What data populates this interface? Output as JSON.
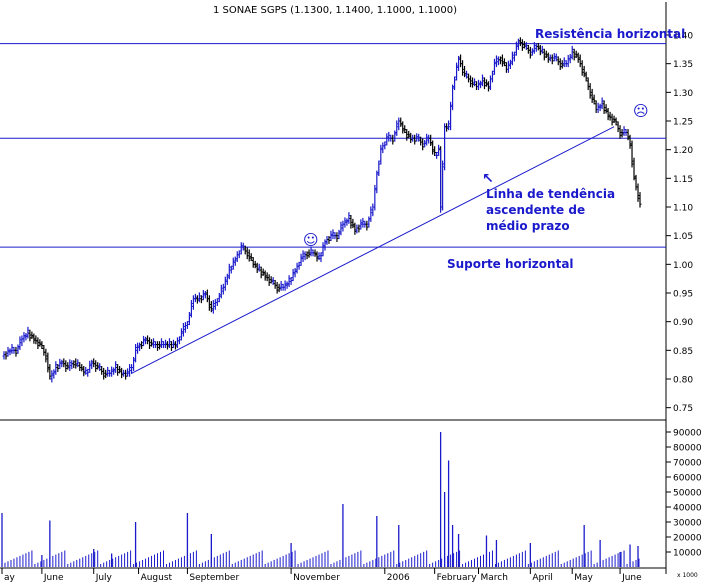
{
  "chart_data": [
    {
      "type": "ohlc",
      "title": "1 SONAE SGPS (1.1300, 1.1400, 1.1000, 1.1000)",
      "ylim": [
        0.75,
        1.4
      ],
      "yticks": [
        "1.40",
        "1.35",
        "1.30",
        "1.25",
        "1.20",
        "1.15",
        "1.10",
        "1.05",
        "1.00",
        "0.95",
        "0.90",
        "0.85",
        "0.80",
        "0.75"
      ],
      "ytick_values": [
        1.4,
        1.35,
        1.3,
        1.25,
        1.2,
        1.15,
        1.1,
        1.05,
        1.0,
        0.95,
        0.9,
        0.85,
        0.8,
        0.75
      ],
      "xticks": [
        "ay",
        "June",
        "July",
        "August",
        "September",
        "November",
        "2006",
        "February",
        "March",
        "April",
        "May",
        "June"
      ],
      "xtick_day": [
        0,
        40,
        92,
        137,
        186,
        290,
        384,
        434,
        478,
        530,
        572,
        620
      ],
      "series": [
        {
          "up_color": "#1a1acc",
          "down_color": "#000000",
          "points": [
            [
              0,
              0.84
            ],
            [
              8,
              0.85
            ],
            [
              14,
              0.85
            ],
            [
              20,
              0.87
            ],
            [
              26,
              0.88
            ],
            [
              32,
              0.87
            ],
            [
              38,
              0.86
            ],
            [
              44,
              0.84
            ],
            [
              48,
              0.8
            ],
            [
              54,
              0.82
            ],
            [
              60,
              0.83
            ],
            [
              66,
              0.82
            ],
            [
              72,
              0.83
            ],
            [
              78,
              0.82
            ],
            [
              84,
              0.81
            ],
            [
              90,
              0.83
            ],
            [
              96,
              0.82
            ],
            [
              102,
              0.81
            ],
            [
              108,
              0.81
            ],
            [
              114,
              0.82
            ],
            [
              120,
              0.81
            ],
            [
              126,
              0.81
            ],
            [
              130,
              0.82
            ],
            [
              134,
              0.85
            ],
            [
              138,
              0.86
            ],
            [
              144,
              0.87
            ],
            [
              150,
              0.86
            ],
            [
              156,
              0.86
            ],
            [
              162,
              0.86
            ],
            [
              168,
              0.86
            ],
            [
              174,
              0.86
            ],
            [
              180,
              0.88
            ],
            [
              186,
              0.9
            ],
            [
              192,
              0.94
            ],
            [
              198,
              0.94
            ],
            [
              204,
              0.95
            ],
            [
              210,
              0.92
            ],
            [
              216,
              0.94
            ],
            [
              222,
              0.96
            ],
            [
              228,
              0.99
            ],
            [
              234,
              1.01
            ],
            [
              240,
              1.03
            ],
            [
              246,
              1.02
            ],
            [
              252,
              1.0
            ],
            [
              258,
              0.99
            ],
            [
              264,
              0.98
            ],
            [
              270,
              0.97
            ],
            [
              276,
              0.96
            ],
            [
              282,
              0.96
            ],
            [
              288,
              0.97
            ],
            [
              294,
              0.99
            ],
            [
              300,
              1.01
            ],
            [
              306,
              1.02
            ],
            [
              312,
              1.02
            ],
            [
              318,
              1.01
            ],
            [
              324,
              1.04
            ],
            [
              330,
              1.05
            ],
            [
              336,
              1.05
            ],
            [
              342,
              1.07
            ],
            [
              348,
              1.08
            ],
            [
              354,
              1.06
            ],
            [
              360,
              1.07
            ],
            [
              366,
              1.07
            ],
            [
              372,
              1.1
            ],
            [
              376,
              1.16
            ],
            [
              380,
              1.2
            ],
            [
              386,
              1.22
            ],
            [
              392,
              1.22
            ],
            [
              398,
              1.25
            ],
            [
              404,
              1.23
            ],
            [
              410,
              1.22
            ],
            [
              416,
              1.22
            ],
            [
              422,
              1.21
            ],
            [
              428,
              1.22
            ],
            [
              434,
              1.19
            ],
            [
              438,
              1.2
            ],
            [
              440,
              1.1
            ],
            [
              444,
              1.24
            ],
            [
              448,
              1.24
            ],
            [
              452,
              1.31
            ],
            [
              458,
              1.36
            ],
            [
              464,
              1.33
            ],
            [
              470,
              1.32
            ],
            [
              476,
              1.31
            ],
            [
              482,
              1.32
            ],
            [
              488,
              1.31
            ],
            [
              494,
              1.35
            ],
            [
              500,
              1.36
            ],
            [
              506,
              1.34
            ],
            [
              512,
              1.36
            ],
            [
              518,
              1.39
            ],
            [
              524,
              1.38
            ],
            [
              530,
              1.37
            ],
            [
              536,
              1.38
            ],
            [
              542,
              1.37
            ],
            [
              548,
              1.36
            ],
            [
              554,
              1.36
            ],
            [
              560,
              1.35
            ],
            [
              566,
              1.35
            ],
            [
              572,
              1.37
            ],
            [
              578,
              1.36
            ],
            [
              584,
              1.33
            ],
            [
              590,
              1.3
            ],
            [
              596,
              1.27
            ],
            [
              602,
              1.28
            ],
            [
              608,
              1.26
            ],
            [
              614,
              1.25
            ],
            [
              620,
              1.23
            ],
            [
              626,
              1.23
            ],
            [
              630,
              1.21
            ],
            [
              634,
              1.15
            ],
            [
              638,
              1.12
            ],
            [
              640,
              1.1
            ]
          ]
        }
      ],
      "lines": [
        {
          "type": "horizontal",
          "y": 1.385,
          "label": "Resistência horizontal"
        },
        {
          "type": "horizontal",
          "y": 1.22,
          "label": ""
        },
        {
          "type": "horizontal",
          "y": 1.03,
          "label": "Suporte horizontal"
        },
        {
          "type": "trend",
          "from": [
            130,
            0.81
          ],
          "to": [
            614,
            1.24
          ],
          "label": "Linha de tendência ascendente de médio prazo"
        }
      ],
      "annotations": {
        "resistance_label": "Resistência horizontal",
        "support_label": "Suporte horizontal",
        "trend_line_1": "Linha de tendência",
        "trend_line_2": "ascendente de",
        "trend_line_3": "médio prazo",
        "smiley": "☺",
        "sad": "☹",
        "arrow": "↖"
      },
      "grid": false,
      "colors": {
        "annotation": "#1a1acc",
        "line": "#1a1acc",
        "up": "#1a1acc",
        "down": "#000000"
      }
    },
    {
      "type": "bar",
      "title": "",
      "ylabel": "x 1000",
      "ylim": [
        0,
        95000
      ],
      "yticks": [
        "90000",
        "80000",
        "70000",
        "60000",
        "50000",
        "40000",
        "30000",
        "20000",
        "10000"
      ],
      "ytick_values": [
        90000,
        80000,
        70000,
        60000,
        50000,
        40000,
        30000,
        20000,
        10000
      ],
      "series": [
        {
          "name": "",
          "color": "#1a1acc",
          "points": [
            [
              0,
              36000
            ],
            [
              40,
              8000
            ],
            [
              48,
              31000
            ],
            [
              92,
              12000
            ],
            [
              110,
              9000
            ],
            [
              134,
              30000
            ],
            [
              186,
              36000
            ],
            [
              210,
              22000
            ],
            [
              290,
              16000
            ],
            [
              342,
              42000
            ],
            [
              376,
              34000
            ],
            [
              398,
              28000
            ],
            [
              440,
              90000
            ],
            [
              444,
              50000
            ],
            [
              448,
              71000
            ],
            [
              452,
              28000
            ],
            [
              458,
              22000
            ],
            [
              486,
              21000
            ],
            [
              496,
              18000
            ],
            [
              530,
              16000
            ],
            [
              584,
              28000
            ],
            [
              600,
              18000
            ],
            [
              620,
              10000
            ],
            [
              630,
              15000
            ],
            [
              638,
              14000
            ]
          ]
        }
      ]
    }
  ]
}
